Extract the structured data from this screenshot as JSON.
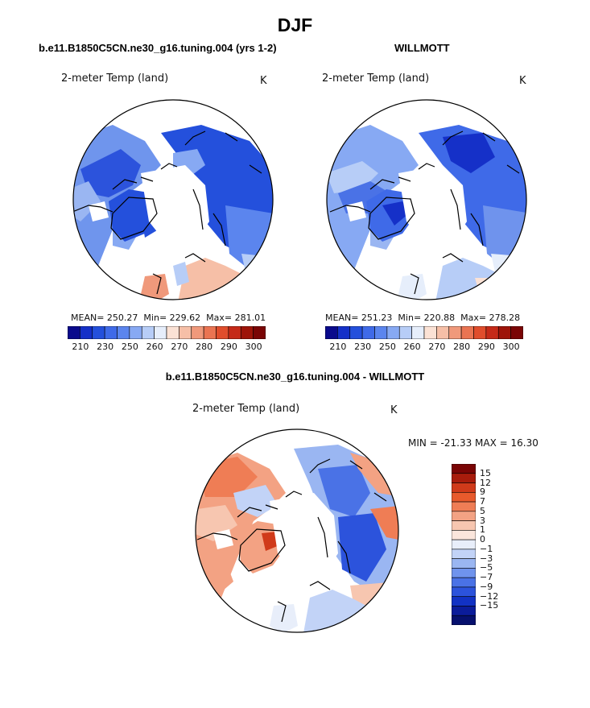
{
  "title": "DJF",
  "colors": {
    "abs_scale": [
      "#0a0a8c",
      "#1530c8",
      "#2450dc",
      "#3f6ae8",
      "#5b85ee",
      "#87a9f3",
      "#b7cdf7",
      "#e6eefb",
      "#fbe2d5",
      "#f6bfa7",
      "#f0997b",
      "#ea7452",
      "#e04d2c",
      "#c52a18",
      "#9e1409",
      "#7a0505"
    ],
    "diff_scale": [
      "#7a0505",
      "#a81c0c",
      "#d03a1a",
      "#e85a2c",
      "#ef7d55",
      "#f3a283",
      "#f7c6b0",
      "#fbe6dc",
      "#e8eefa",
      "#c2d3f7",
      "#9ab6f2",
      "#6f93ed",
      "#4a72e6",
      "#2c53dc",
      "#1232c4",
      "#0b1c9a",
      "#06106e"
    ]
  },
  "chart_data": [
    {
      "type": "heatmap",
      "panel": "model",
      "title": "b.e11.B1850C5CN.ne30_g16.tuning.004 (yrs 1-2)",
      "variable_label": "2-meter Temp (land)",
      "units": "K",
      "mean_label": "MEAN=",
      "mean": "250.27",
      "min_label": "Min=",
      "min": "229.62",
      "max_label": "Max=",
      "max": "281.01",
      "projection": "north-polar stereographic",
      "colorbar": {
        "ticks": [
          "210",
          "230",
          "250",
          "260",
          "270",
          "280",
          "290",
          "300"
        ],
        "levels": [
          205,
          210,
          220,
          230,
          240,
          250,
          255,
          260,
          265,
          270,
          275,
          280,
          285,
          290,
          295,
          300,
          305
        ]
      }
    },
    {
      "type": "heatmap",
      "panel": "obs",
      "title": "WILLMOTT",
      "variable_label": "2-meter Temp (land)",
      "units": "K",
      "mean_label": "MEAN=",
      "mean": "251.23",
      "min_label": "Min=",
      "min": "220.88",
      "max_label": "Max=",
      "max": "278.28",
      "projection": "north-polar stereographic",
      "colorbar": {
        "ticks": [
          "210",
          "230",
          "250",
          "260",
          "270",
          "280",
          "290",
          "300"
        ]
      }
    },
    {
      "type": "heatmap",
      "panel": "difference",
      "title": "b.e11.B1850C5CN.ne30_g16.tuning.004 - WILLMOTT",
      "variable_label": "2-meter Temp (land)",
      "units": "K",
      "range_label": "MIN = -21.33 MAX =  16.30",
      "min": -21.33,
      "max": 16.3,
      "projection": "north-polar stereographic",
      "colorbar": {
        "ticks": [
          "15",
          "12",
          "9",
          "7",
          "5",
          "3",
          "1",
          "0",
          "−1",
          "−3",
          "−5",
          "−7",
          "−9",
          "−12",
          "−15"
        ]
      }
    }
  ]
}
